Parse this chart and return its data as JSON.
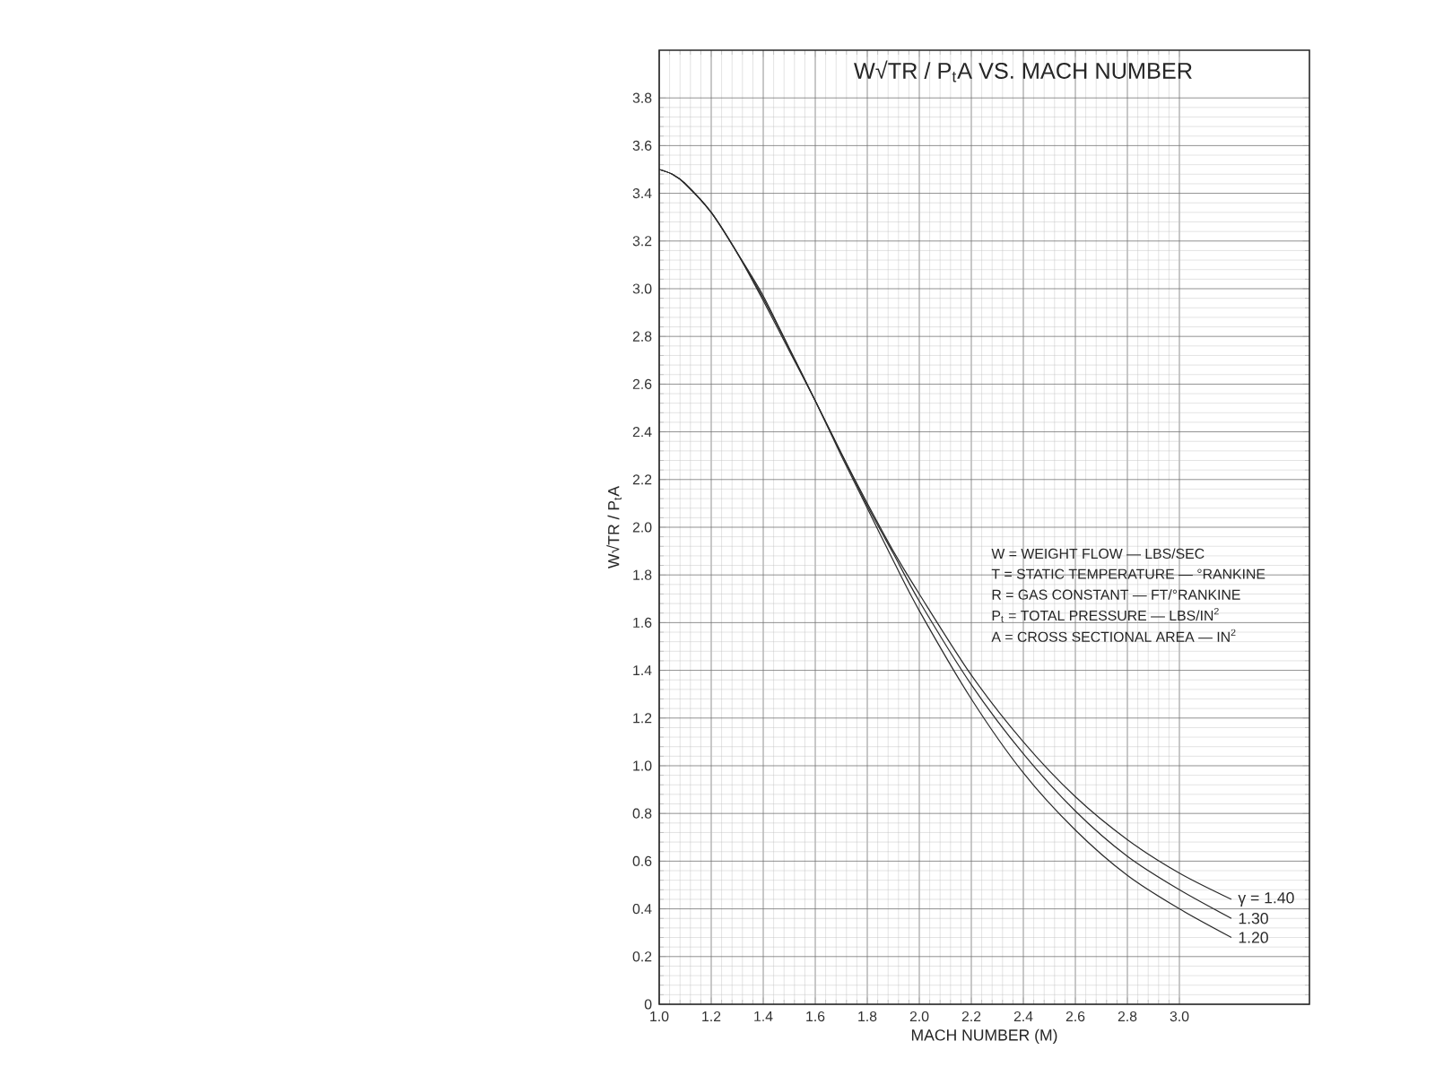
{
  "chart_data": {
    "type": "line",
    "title": "W√TR / P$_{t}$A   VS.   MACH NUMBER",
    "xlabel": "MACH NUMBER (M)",
    "ylabel": "W√TR / P$_{t}$A",
    "x": [
      1.0,
      1.05,
      1.1,
      1.2,
      1.3,
      1.4,
      1.5,
      1.6,
      1.7,
      1.8,
      1.9,
      2.0,
      2.2,
      2.4,
      2.6,
      2.8,
      3.0,
      3.2
    ],
    "series": [
      {
        "name": "γ = 1.40",
        "color": "#2b2b2b",
        "values": [
          3.5,
          3.48,
          3.44,
          3.32,
          3.15,
          2.95,
          2.74,
          2.53,
          2.31,
          2.1,
          1.9,
          1.72,
          1.38,
          1.1,
          0.87,
          0.69,
          0.55,
          0.44
        ]
      },
      {
        "name": "1.30",
        "color": "#2b2b2b",
        "values": [
          3.5,
          3.48,
          3.44,
          3.32,
          3.15,
          2.96,
          2.75,
          2.53,
          2.31,
          2.09,
          1.89,
          1.69,
          1.34,
          1.05,
          0.81,
          0.62,
          0.48,
          0.36
        ]
      },
      {
        "name": "1.20",
        "color": "#2b2b2b",
        "values": [
          3.5,
          3.48,
          3.44,
          3.32,
          3.15,
          2.97,
          2.75,
          2.53,
          2.3,
          2.08,
          1.86,
          1.65,
          1.28,
          0.97,
          0.73,
          0.54,
          0.4,
          0.28
        ]
      }
    ],
    "xlim": [
      1.0,
      3.5
    ],
    "ylim": [
      0,
      4.0
    ],
    "xticks": [
      {
        "value": 1.0,
        "label": "1.0"
      },
      1.2,
      1.4,
      1.6,
      1.8,
      {
        "value": 2.0,
        "label": "2.0"
      },
      2.2,
      2.4,
      2.6,
      2.8,
      {
        "value": 3.0,
        "label": "3.0"
      }
    ],
    "yticks": [
      0,
      0.2,
      0.4,
      0.6,
      0.8,
      {
        "value": 1.0,
        "label": "1.0"
      },
      1.2,
      1.4,
      1.6,
      1.8,
      {
        "value": 2.0,
        "label": "2.0"
      },
      2.2,
      2.4,
      2.6,
      2.8,
      {
        "value": 3.0,
        "label": "3.0"
      },
      3.2,
      3.4,
      3.6,
      3.8
    ],
    "grid": true,
    "legend": false,
    "line_style": "solid",
    "annotations": [
      "W = WEIGHT FLOW — LBS/SEC",
      "T = STATIC TEMPERATURE — °RANKINE",
      "R = GAS CONSTANT — FT/°RANKINE",
      "P$_{t}$ = TOTAL PRESSURE — LBS/IN$^{2}$",
      "A = CROSS SECTIONAL AREA — IN$^{2}$"
    ]
  }
}
